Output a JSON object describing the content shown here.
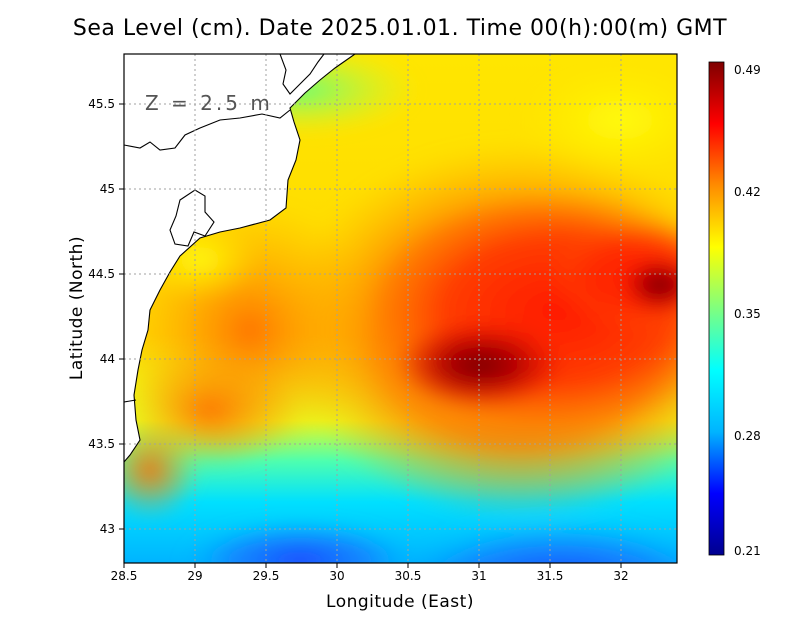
{
  "title": "Sea Level (cm). Date 2025.01.01. Time 00(h):00(m) GMT",
  "depth_label": "Z = 2.5 m",
  "chart_data": {
    "type": "heatmap",
    "title": "Sea Level (cm). Date 2025.01.01. Time 00(h):00(m) GMT",
    "xlabel": "Longitude (East)",
    "ylabel": "Latitude (North)",
    "xlim": [
      28.5,
      32.4
    ],
    "ylim": [
      42.8,
      45.8
    ],
    "x_ticks": [
      "28.5",
      "29",
      "29.5",
      "30",
      "30.5",
      "31",
      "31.5",
      "32"
    ],
    "x_tick_values": [
      28.5,
      29,
      29.5,
      30,
      30.5,
      31,
      31.5,
      32
    ],
    "y_ticks": [
      "43",
      "43.5",
      "44",
      "44.5",
      "45",
      "45.5"
    ],
    "y_tick_values": [
      43,
      43.5,
      44,
      44.5,
      45,
      45.5
    ],
    "grid": true,
    "colorbar": {
      "min": 0.21,
      "max": 0.49,
      "tick_labels": [
        "0.49",
        "0.42",
        "0.35",
        "0.28",
        "0.21"
      ],
      "tick_values": [
        0.49,
        0.42,
        0.35,
        0.28,
        0.21
      ],
      "stops": [
        {
          "value": 0.21,
          "color": "#00008f"
        },
        {
          "value": 0.245,
          "color": "#0000ff"
        },
        {
          "value": 0.28,
          "color": "#00b4ff"
        },
        {
          "value": 0.315,
          "color": "#00ffff"
        },
        {
          "value": 0.35,
          "color": "#7fff7f"
        },
        {
          "value": 0.385,
          "color": "#ffff00"
        },
        {
          "value": 0.42,
          "color": "#ff8c00"
        },
        {
          "value": 0.455,
          "color": "#ff0000"
        },
        {
          "value": 0.49,
          "color": "#7f0000"
        }
      ]
    },
    "field_features": [
      {
        "name": "max-center",
        "lon": 31.0,
        "lat": 43.98,
        "value": 0.49
      },
      {
        "name": "east-high",
        "lon": 32.25,
        "lat": 44.48,
        "value": 0.47
      },
      {
        "name": "south-low",
        "lon": 31.0,
        "lat": 42.85,
        "value": 0.26
      },
      {
        "name": "southwest-high",
        "lon": 28.55,
        "lat": 43.2,
        "value": 0.42
      }
    ]
  }
}
